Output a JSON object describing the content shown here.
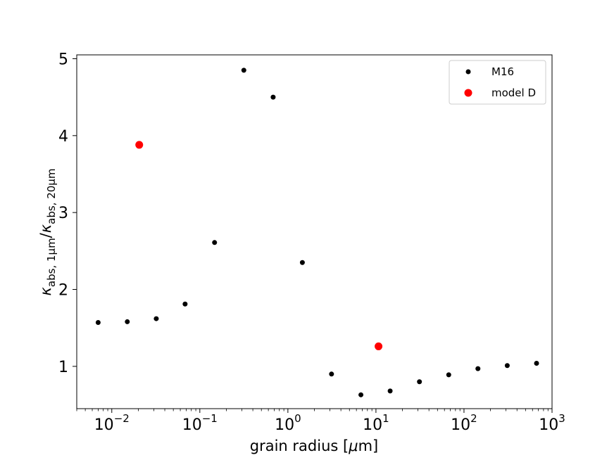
{
  "chart_data": {
    "type": "scatter",
    "x_scale": "log",
    "xlim": [
      0.004,
      1000
    ],
    "ylim": [
      0.45,
      5.05
    ],
    "xlabel_parts": {
      "main": "grain radius [",
      "mu": "μ",
      "end": "m]"
    },
    "ylabel_parts": {
      "kappa1": "κ",
      "sub1": "abs, 1μm",
      "slash": "/",
      "kappa2": "κ",
      "sub2": "abs, 20μm"
    },
    "x_ticks": [
      {
        "value": 0.01,
        "base": "10",
        "exp": "−2"
      },
      {
        "value": 0.1,
        "base": "10",
        "exp": "−1"
      },
      {
        "value": 1,
        "base": "10",
        "exp": "0"
      },
      {
        "value": 10,
        "base": "10",
        "exp": "1"
      },
      {
        "value": 100,
        "base": "10",
        "exp": "2"
      },
      {
        "value": 1000,
        "base": "10",
        "exp": "3"
      }
    ],
    "y_ticks": [
      {
        "value": 1,
        "label": "1"
      },
      {
        "value": 2,
        "label": "2"
      },
      {
        "value": 3,
        "label": "3"
      },
      {
        "value": 4,
        "label": "4"
      },
      {
        "value": 5,
        "label": "5"
      }
    ],
    "legend_position": "top-right",
    "series": [
      {
        "name": "M16",
        "color": "#000000",
        "marker": "small-circle",
        "points": [
          {
            "x": 0.007,
            "y": 1.57
          },
          {
            "x": 0.015,
            "y": 1.58
          },
          {
            "x": 0.032,
            "y": 1.62
          },
          {
            "x": 0.068,
            "y": 1.81
          },
          {
            "x": 0.147,
            "y": 2.61
          },
          {
            "x": 0.316,
            "y": 4.85
          },
          {
            "x": 0.68,
            "y": 4.5
          },
          {
            "x": 1.46,
            "y": 2.35
          },
          {
            "x": 3.13,
            "y": 0.9
          },
          {
            "x": 6.75,
            "y": 0.63
          },
          {
            "x": 14.5,
            "y": 0.68
          },
          {
            "x": 31.2,
            "y": 0.8
          },
          {
            "x": 67.1,
            "y": 0.89
          },
          {
            "x": 144,
            "y": 0.97
          },
          {
            "x": 310,
            "y": 1.01
          },
          {
            "x": 667,
            "y": 1.04
          }
        ]
      },
      {
        "name": "model D",
        "color": "#ff0000",
        "marker": "large-circle",
        "points": [
          {
            "x": 0.0205,
            "y": 3.88
          },
          {
            "x": 10.7,
            "y": 1.26
          }
        ]
      }
    ]
  }
}
